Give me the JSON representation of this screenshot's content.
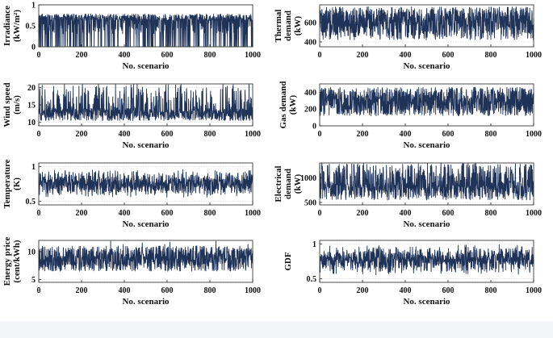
{
  "figure": {
    "background": "#ffffff",
    "line_color": "#1f3258",
    "grid_color": "#cfcfcf",
    "axis_color": "#222222"
  },
  "chart_data": [
    {
      "id": "irradiance",
      "type": "line",
      "ylabel_lines": [
        "Irradiance",
        "(kW/m²)"
      ],
      "xlabel": "No. scenario",
      "xlim": [
        0,
        1000
      ],
      "ylim": [
        0,
        1
      ],
      "xticks": [
        0,
        200,
        400,
        600,
        800,
        1000
      ],
      "yticks": [
        0,
        0.5,
        1
      ],
      "ytick_labels": [
        "0",
        "0.5",
        "1"
      ],
      "n": 1000,
      "series_range": [
        0,
        0.8
      ],
      "pattern": "irr"
    },
    {
      "id": "wind-speed",
      "type": "line",
      "ylabel_lines": [
        "Wind speed",
        "(m/s)"
      ],
      "xlabel": "No. scenario",
      "xlim": [
        0,
        1000
      ],
      "ylim": [
        9,
        21
      ],
      "xticks": [
        0,
        200,
        400,
        600,
        800,
        1000
      ],
      "yticks": [
        10,
        15,
        20
      ],
      "ytick_labels": [
        "10",
        "15",
        "20"
      ],
      "n": 1000,
      "series_range": [
        10,
        21
      ],
      "pattern": "wind"
    },
    {
      "id": "temperature",
      "type": "line",
      "ylabel_lines": [
        "Temperature",
        "(K)"
      ],
      "xlabel": "No. scenario",
      "xlim": [
        0,
        1000
      ],
      "ylim": [
        0.45,
        1.05
      ],
      "xticks": [
        0,
        200,
        400,
        600,
        800,
        1000
      ],
      "yticks": [
        0.5,
        1
      ],
      "ytick_labels": [
        "0.5",
        "1"
      ],
      "n": 1000,
      "series_range": [
        0.5,
        1.02
      ],
      "pattern": "temp"
    },
    {
      "id": "energy-price",
      "type": "line",
      "ylabel_lines": [
        "Energy price",
        "(cent/kWh)"
      ],
      "xlabel": "No. scenario",
      "xlim": [
        0,
        1000
      ],
      "ylim": [
        4.5,
        12
      ],
      "xticks": [
        0,
        200,
        400,
        600,
        800,
        1000
      ],
      "yticks": [
        5,
        10
      ],
      "ytick_labels": [
        "5",
        "10"
      ],
      "n": 1000,
      "series_range": [
        5,
        12
      ],
      "pattern": "price"
    },
    {
      "id": "thermal-demand",
      "type": "line",
      "ylabel_lines": [
        "Thermal",
        "demand",
        "(kW)"
      ],
      "xlabel": "No. scenario",
      "xlim": [
        0,
        1000
      ],
      "ylim": [
        350,
        780
      ],
      "xticks": [
        0,
        200,
        400,
        600,
        800,
        1000
      ],
      "yticks": [
        400,
        600
      ],
      "ytick_labels": [
        "400",
        "600"
      ],
      "n": 1000,
      "series_range": [
        380,
        780
      ],
      "pattern": "thermal"
    },
    {
      "id": "gas-demand",
      "type": "line",
      "ylabel_lines": [
        "Gas demand",
        "(kW)"
      ],
      "xlabel": "No. scenario",
      "xlim": [
        0,
        1000
      ],
      "ylim": [
        0,
        500
      ],
      "xticks": [
        0,
        200,
        400,
        600,
        800,
        1000
      ],
      "yticks": [
        0,
        200,
        400
      ],
      "ytick_labels": [
        "0",
        "200",
        "400"
      ],
      "n": 1000,
      "series_range": [
        100,
        480
      ],
      "pattern": "gas"
    },
    {
      "id": "electrical-demand",
      "type": "line",
      "ylabel_lines": [
        "Electrical",
        "demand",
        "(kW)"
      ],
      "xlabel": "No. scenario",
      "xlim": [
        0,
        1000
      ],
      "ylim": [
        450,
        1300
      ],
      "xticks": [
        0,
        200,
        400,
        600,
        800,
        1000
      ],
      "yticks": [
        500,
        1000
      ],
      "ytick_labels": [
        "500",
        "1000"
      ],
      "n": 1000,
      "series_range": [
        500,
        1300
      ],
      "pattern": "elec"
    },
    {
      "id": "gdf",
      "type": "line",
      "ylabel_lines": [
        "GDF"
      ],
      "xlabel": "No. scenario",
      "xlim": [
        0,
        1000
      ],
      "ylim": [
        0.45,
        1.05
      ],
      "xticks": [
        0,
        200,
        400,
        600,
        800,
        1000
      ],
      "yticks": [
        0.5,
        1
      ],
      "ytick_labels": [
        "0.5",
        "1"
      ],
      "n": 1000,
      "series_range": [
        0.5,
        1.05
      ],
      "pattern": "gdf"
    }
  ]
}
